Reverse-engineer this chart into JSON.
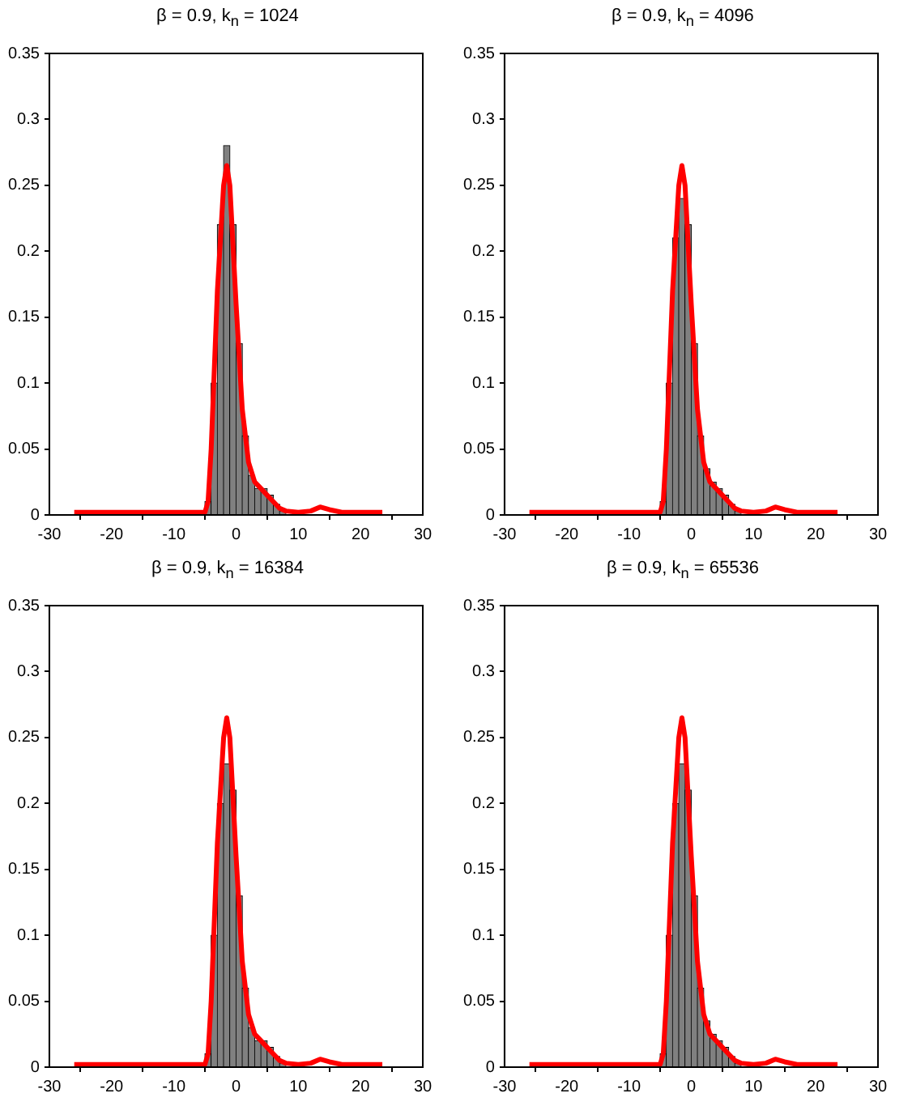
{
  "chart_data": [
    {
      "type": "histogram",
      "title": "β = 0.9, k$_{n}$ = 1024",
      "xlim": [
        -30,
        30
      ],
      "xticks": [
        -30,
        -20,
        -10,
        0,
        10,
        20,
        30
      ],
      "ylim": [
        0,
        0.35
      ],
      "yticks": [
        0,
        0.05,
        0.1,
        0.15,
        0.2,
        0.25,
        0.3,
        0.35
      ],
      "grid": false,
      "legend": false,
      "series": [
        {
          "type": "histogram",
          "color": "#808080",
          "bins": [
            -5,
            -4,
            -3,
            -2,
            -1,
            0,
            1,
            2,
            3,
            4,
            5,
            6,
            7,
            8
          ],
          "values": [
            0.01,
            0.1,
            0.22,
            0.28,
            0.22,
            0.13,
            0.06,
            0.03,
            0.02,
            0.02,
            0.015,
            0.008,
            0.003
          ]
        },
        {
          "type": "line",
          "color": "#ff0000",
          "x": [
            -26,
            -5,
            -4.5,
            -4,
            -3,
            -2,
            -1.5,
            -1,
            0,
            1,
            2,
            3,
            4,
            5,
            6,
            7,
            8,
            10,
            12,
            13.5,
            15,
            17,
            23.5
          ],
          "values": [
            0.002,
            0.002,
            0.01,
            0.05,
            0.17,
            0.25,
            0.265,
            0.25,
            0.16,
            0.08,
            0.04,
            0.025,
            0.02,
            0.015,
            0.01,
            0.005,
            0.003,
            0.002,
            0.003,
            0.006,
            0.004,
            0.002,
            0.002
          ]
        }
      ]
    },
    {
      "type": "histogram",
      "title": "β = 0.9, k$_{n}$ = 4096",
      "xlim": [
        -30,
        30
      ],
      "xticks": [
        -30,
        -20,
        -10,
        0,
        10,
        20,
        30
      ],
      "ylim": [
        0,
        0.35
      ],
      "yticks": [
        0,
        0.05,
        0.1,
        0.15,
        0.2,
        0.25,
        0.3,
        0.35
      ],
      "grid": false,
      "legend": false,
      "series": [
        {
          "type": "histogram",
          "color": "#808080",
          "bins": [
            -5,
            -4,
            -3,
            -2,
            -1,
            0,
            1,
            2,
            3,
            4,
            5,
            6,
            7,
            8
          ],
          "values": [
            0.01,
            0.1,
            0.21,
            0.24,
            0.22,
            0.13,
            0.06,
            0.035,
            0.025,
            0.02,
            0.015,
            0.008,
            0.003
          ]
        },
        {
          "type": "line",
          "color": "#ff0000",
          "x": [
            -26,
            -5,
            -4.5,
            -4,
            -3,
            -2,
            -1.5,
            -1,
            0,
            1,
            2,
            3,
            4,
            5,
            6,
            7,
            8,
            10,
            12,
            13.5,
            15,
            17,
            23.5
          ],
          "values": [
            0.002,
            0.002,
            0.01,
            0.05,
            0.17,
            0.25,
            0.265,
            0.25,
            0.16,
            0.08,
            0.04,
            0.025,
            0.02,
            0.015,
            0.01,
            0.005,
            0.003,
            0.002,
            0.003,
            0.006,
            0.004,
            0.002,
            0.002
          ]
        }
      ]
    },
    {
      "type": "histogram",
      "title": "β = 0.9, k$_{n}$ = 16384",
      "xlim": [
        -30,
        30
      ],
      "xticks": [
        -30,
        -20,
        -10,
        0,
        10,
        20,
        30
      ],
      "ylim": [
        0,
        0.35
      ],
      "yticks": [
        0,
        0.05,
        0.1,
        0.15,
        0.2,
        0.25,
        0.3,
        0.35
      ],
      "grid": false,
      "legend": false,
      "series": [
        {
          "type": "histogram",
          "color": "#808080",
          "bins": [
            -5,
            -4,
            -3,
            -2,
            -1,
            0,
            1,
            2,
            3,
            4,
            5,
            6,
            7,
            8
          ],
          "values": [
            0.01,
            0.1,
            0.2,
            0.23,
            0.21,
            0.13,
            0.06,
            0.03,
            0.02,
            0.02,
            0.015,
            0.008,
            0.003
          ]
        },
        {
          "type": "line",
          "color": "#ff0000",
          "x": [
            -26,
            -5,
            -4.5,
            -4,
            -3,
            -2,
            -1.5,
            -1,
            0,
            1,
            2,
            3,
            4,
            5,
            6,
            7,
            8,
            10,
            12,
            13.5,
            15,
            17,
            23.5
          ],
          "values": [
            0.002,
            0.002,
            0.01,
            0.05,
            0.17,
            0.25,
            0.265,
            0.25,
            0.16,
            0.08,
            0.04,
            0.025,
            0.02,
            0.015,
            0.01,
            0.005,
            0.003,
            0.002,
            0.003,
            0.006,
            0.004,
            0.002,
            0.002
          ]
        }
      ]
    },
    {
      "type": "histogram",
      "title": "β = 0.9, k$_{n}$ = 65536",
      "xlim": [
        -30,
        30
      ],
      "xticks": [
        -30,
        -20,
        -10,
        0,
        10,
        20,
        30
      ],
      "ylim": [
        0,
        0.35
      ],
      "yticks": [
        0,
        0.05,
        0.1,
        0.15,
        0.2,
        0.25,
        0.3,
        0.35
      ],
      "grid": false,
      "legend": false,
      "series": [
        {
          "type": "histogram",
          "color": "#808080",
          "bins": [
            -5,
            -4,
            -3,
            -2,
            -1,
            0,
            1,
            2,
            3,
            4,
            5,
            6,
            7,
            8
          ],
          "values": [
            0.01,
            0.1,
            0.2,
            0.23,
            0.21,
            0.13,
            0.06,
            0.035,
            0.025,
            0.02,
            0.015,
            0.008,
            0.003
          ]
        },
        {
          "type": "line",
          "color": "#ff0000",
          "x": [
            -26,
            -5,
            -4.5,
            -4,
            -3,
            -2,
            -1.5,
            -1,
            0,
            1,
            2,
            3,
            4,
            5,
            6,
            7,
            8,
            10,
            12,
            13.5,
            15,
            17,
            23.5
          ],
          "values": [
            0.002,
            0.002,
            0.01,
            0.05,
            0.17,
            0.25,
            0.265,
            0.25,
            0.16,
            0.08,
            0.04,
            0.025,
            0.02,
            0.015,
            0.01,
            0.005,
            0.003,
            0.002,
            0.003,
            0.006,
            0.004,
            0.002,
            0.002
          ]
        }
      ]
    }
  ]
}
